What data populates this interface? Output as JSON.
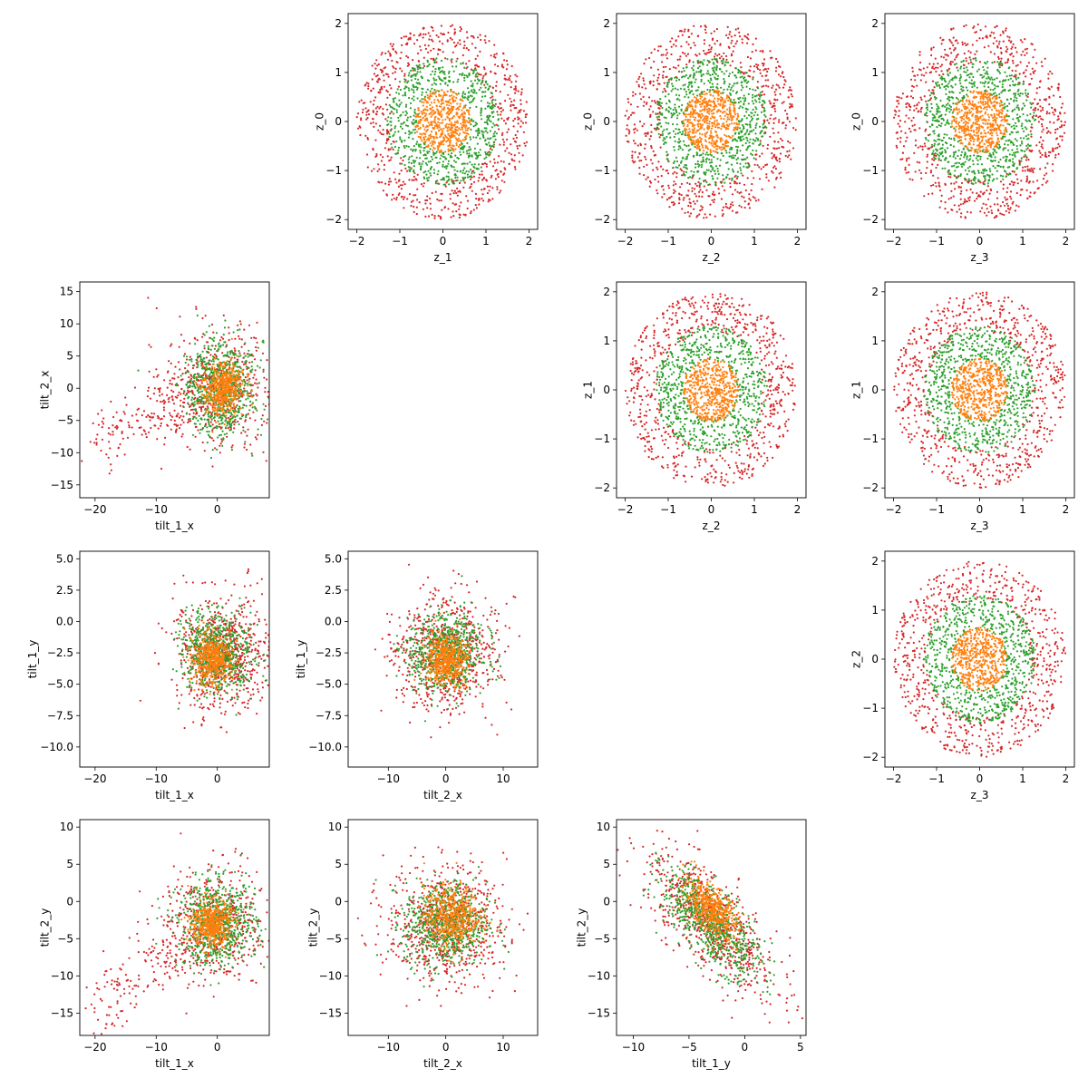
{
  "figure": {
    "kind": "scatter-matrix",
    "legend": "none",
    "grid": false,
    "title": ""
  },
  "series_colors": [
    "#d62728",
    "#2ca02c",
    "#ff7f0e"
  ],
  "chart_data": [
    {
      "type": "scatter",
      "row": 0,
      "col": 1,
      "title": "",
      "xlabel": "z_1",
      "ylabel": "z_0",
      "xlim": [
        -2.2,
        2.2
      ],
      "ylim": [
        -2.2,
        2.2
      ],
      "xticks": [
        -2,
        -1,
        0,
        1,
        2
      ],
      "yticks": [
        -2,
        -1,
        0,
        1,
        2
      ],
      "series": [
        {
          "color": "#d62728",
          "distribution": "annulus",
          "radius_range": [
            1.2,
            2.0
          ],
          "approx_points": 700
        },
        {
          "color": "#2ca02c",
          "distribution": "annulus",
          "radius_range": [
            0.6,
            1.3
          ],
          "approx_points": 700
        },
        {
          "color": "#ff7f0e",
          "distribution": "disc",
          "radius_range": [
            0,
            0.65
          ],
          "approx_points": 500
        }
      ]
    },
    {
      "type": "scatter",
      "row": 0,
      "col": 2,
      "title": "",
      "xlabel": "z_2",
      "ylabel": "z_0",
      "xlim": [
        -2.2,
        2.2
      ],
      "ylim": [
        -2.2,
        2.2
      ],
      "xticks": [
        -2,
        -1,
        0,
        1,
        2
      ],
      "yticks": [
        -2,
        -1,
        0,
        1,
        2
      ],
      "series": [
        {
          "color": "#d62728",
          "distribution": "annulus",
          "radius_range": [
            1.2,
            2.0
          ],
          "approx_points": 700
        },
        {
          "color": "#2ca02c",
          "distribution": "annulus",
          "radius_range": [
            0.6,
            1.3
          ],
          "approx_points": 700
        },
        {
          "color": "#ff7f0e",
          "distribution": "disc",
          "radius_range": [
            0,
            0.65
          ],
          "approx_points": 500
        }
      ]
    },
    {
      "type": "scatter",
      "row": 0,
      "col": 3,
      "title": "",
      "xlabel": "z_3",
      "ylabel": "z_0",
      "xlim": [
        -2.2,
        2.2
      ],
      "ylim": [
        -2.2,
        2.2
      ],
      "xticks": [
        -2,
        -1,
        0,
        1,
        2
      ],
      "yticks": [
        -2,
        -1,
        0,
        1,
        2
      ],
      "series": [
        {
          "color": "#d62728",
          "distribution": "annulus",
          "radius_range": [
            1.2,
            2.0
          ],
          "approx_points": 700
        },
        {
          "color": "#2ca02c",
          "distribution": "annulus",
          "radius_range": [
            0.6,
            1.3
          ],
          "approx_points": 700
        },
        {
          "color": "#ff7f0e",
          "distribution": "disc",
          "radius_range": [
            0,
            0.65
          ],
          "approx_points": 500
        }
      ]
    },
    {
      "type": "scatter",
      "row": 1,
      "col": 0,
      "title": "",
      "xlabel": "tilt_1_x",
      "ylabel": "tilt_2_x",
      "xlim": [
        -22.5,
        8.5
      ],
      "ylim": [
        -17,
        16.5
      ],
      "xticks": [
        -20,
        -10,
        0
      ],
      "yticks": [
        -15,
        -10,
        -5,
        0,
        5,
        10,
        15
      ],
      "series": [
        {
          "color": "#d62728",
          "distribution": "skewed-cloud",
          "center": [
            0,
            0
          ],
          "spread": [
            6,
            5.5
          ],
          "tail_toward": [
            -20,
            -8
          ],
          "approx_points": 700
        },
        {
          "color": "#2ca02c",
          "distribution": "skewed-cloud",
          "center": [
            0.5,
            0
          ],
          "spread": [
            3.5,
            4.5
          ],
          "approx_points": 700
        },
        {
          "color": "#ff7f0e",
          "distribution": "cloud",
          "center": [
            1,
            0
          ],
          "spread": [
            2,
            2.5
          ],
          "approx_points": 500
        }
      ]
    },
    {
      "type": "scatter",
      "row": 1,
      "col": 2,
      "title": "",
      "xlabel": "z_2",
      "ylabel": "z_1",
      "xlim": [
        -2.2,
        2.2
      ],
      "ylim": [
        -2.2,
        2.2
      ],
      "xticks": [
        -2,
        -1,
        0,
        1,
        2
      ],
      "yticks": [
        -2,
        -1,
        0,
        1,
        2
      ],
      "series": [
        {
          "color": "#d62728",
          "distribution": "annulus",
          "radius_range": [
            1.2,
            2.0
          ],
          "approx_points": 700
        },
        {
          "color": "#2ca02c",
          "distribution": "annulus",
          "radius_range": [
            0.6,
            1.3
          ],
          "approx_points": 700
        },
        {
          "color": "#ff7f0e",
          "distribution": "disc",
          "radius_range": [
            0,
            0.65
          ],
          "approx_points": 500
        }
      ]
    },
    {
      "type": "scatter",
      "row": 1,
      "col": 3,
      "title": "",
      "xlabel": "z_3",
      "ylabel": "z_1",
      "xlim": [
        -2.2,
        2.2
      ],
      "ylim": [
        -2.2,
        2.2
      ],
      "xticks": [
        -2,
        -1,
        0,
        1,
        2
      ],
      "yticks": [
        -2,
        -1,
        0,
        1,
        2
      ],
      "series": [
        {
          "color": "#d62728",
          "distribution": "annulus",
          "radius_range": [
            1.2,
            2.0
          ],
          "approx_points": 700
        },
        {
          "color": "#2ca02c",
          "distribution": "annulus",
          "radius_range": [
            0.6,
            1.3
          ],
          "approx_points": 700
        },
        {
          "color": "#ff7f0e",
          "distribution": "disc",
          "radius_range": [
            0,
            0.65
          ],
          "approx_points": 500
        }
      ]
    },
    {
      "type": "scatter",
      "row": 2,
      "col": 0,
      "title": "",
      "xlabel": "tilt_1_x",
      "ylabel": "tilt_1_y",
      "xlim": [
        -22.5,
        8.5
      ],
      "ylim": [
        -11.6,
        5.6
      ],
      "xticks": [
        -20,
        -10,
        0
      ],
      "yticks": [
        -10.0,
        -7.5,
        -5.0,
        -2.5,
        0.0,
        2.5,
        5.0
      ],
      "ytick_labels": [
        "−10.0",
        "−7.5",
        "−5.0",
        "−2.5",
        "0.0",
        "2.5",
        "5.0"
      ],
      "series": [
        {
          "color": "#d62728",
          "distribution": "cloud",
          "center": [
            1,
            -2.5
          ],
          "spread": [
            5,
            2.8
          ],
          "approx_points": 700
        },
        {
          "color": "#2ca02c",
          "distribution": "cloud",
          "center": [
            0,
            -2.5
          ],
          "spread": [
            3.5,
            2.0
          ],
          "approx_points": 700
        },
        {
          "color": "#ff7f0e",
          "distribution": "cloud",
          "center": [
            -1,
            -3
          ],
          "spread": [
            2,
            1.2
          ],
          "approx_points": 500
        }
      ]
    },
    {
      "type": "scatter",
      "row": 2,
      "col": 1,
      "title": "",
      "xlabel": "tilt_2_x",
      "ylabel": "tilt_1_y",
      "xlim": [
        -17,
        16
      ],
      "ylim": [
        -11.6,
        5.6
      ],
      "xticks": [
        -10,
        0,
        10
      ],
      "yticks": [
        -10.0,
        -7.5,
        -5.0,
        -2.5,
        0.0,
        2.5,
        5.0
      ],
      "ytick_labels": [
        "−10.0",
        "−7.5",
        "−5.0",
        "−2.5",
        "0.0",
        "2.5",
        "5.0"
      ],
      "series": [
        {
          "color": "#d62728",
          "distribution": "cloud",
          "center": [
            0,
            -2.5
          ],
          "spread": [
            6,
            2.8
          ],
          "approx_points": 700
        },
        {
          "color": "#2ca02c",
          "distribution": "cloud",
          "center": [
            0,
            -2.5
          ],
          "spread": [
            4,
            2.0
          ],
          "approx_points": 700
        },
        {
          "color": "#ff7f0e",
          "distribution": "cloud",
          "center": [
            0,
            -3
          ],
          "spread": [
            2.2,
            1.2
          ],
          "approx_points": 500
        }
      ]
    },
    {
      "type": "scatter",
      "row": 2,
      "col": 3,
      "title": "",
      "xlabel": "z_3",
      "ylabel": "z_2",
      "xlim": [
        -2.2,
        2.2
      ],
      "ylim": [
        -2.2,
        2.2
      ],
      "xticks": [
        -2,
        -1,
        0,
        1,
        2
      ],
      "yticks": [
        -2,
        -1,
        0,
        1,
        2
      ],
      "series": [
        {
          "color": "#d62728",
          "distribution": "annulus",
          "radius_range": [
            1.2,
            2.0
          ],
          "approx_points": 700
        },
        {
          "color": "#2ca02c",
          "distribution": "annulus",
          "radius_range": [
            0.6,
            1.3
          ],
          "approx_points": 700
        },
        {
          "color": "#ff7f0e",
          "distribution": "disc",
          "radius_range": [
            0,
            0.65
          ],
          "approx_points": 500
        }
      ]
    },
    {
      "type": "scatter",
      "row": 3,
      "col": 0,
      "title": "",
      "xlabel": "tilt_1_x",
      "ylabel": "tilt_2_y",
      "xlim": [
        -22.5,
        8.5
      ],
      "ylim": [
        -18,
        11
      ],
      "xticks": [
        -20,
        -10,
        0
      ],
      "yticks": [
        -15,
        -10,
        -5,
        0,
        5,
        10
      ],
      "series": [
        {
          "color": "#d62728",
          "distribution": "skewed-cloud",
          "center": [
            0,
            -3
          ],
          "spread": [
            6,
            5
          ],
          "tail_toward": [
            -20,
            -14
          ],
          "approx_points": 700
        },
        {
          "color": "#2ca02c",
          "distribution": "cloud",
          "center": [
            0,
            -3
          ],
          "spread": [
            4,
            3.5
          ],
          "approx_points": 700
        },
        {
          "color": "#ff7f0e",
          "distribution": "cloud",
          "center": [
            -1,
            -3
          ],
          "spread": [
            2,
            2
          ],
          "approx_points": 500
        }
      ]
    },
    {
      "type": "scatter",
      "row": 3,
      "col": 1,
      "title": "",
      "xlabel": "tilt_2_x",
      "ylabel": "tilt_2_y",
      "xlim": [
        -17,
        16
      ],
      "ylim": [
        -18,
        11
      ],
      "xticks": [
        -10,
        0,
        10
      ],
      "yticks": [
        -15,
        -10,
        -5,
        0,
        5,
        10
      ],
      "series": [
        {
          "color": "#d62728",
          "distribution": "cloud",
          "center": [
            0,
            -3
          ],
          "spread": [
            6.5,
            5
          ],
          "approx_points": 700
        },
        {
          "color": "#2ca02c",
          "distribution": "cloud",
          "center": [
            0,
            -3
          ],
          "spread": [
            4.5,
            3.5
          ],
          "approx_points": 700
        },
        {
          "color": "#ff7f0e",
          "distribution": "cloud",
          "center": [
            1,
            -2
          ],
          "spread": [
            3,
            2.5
          ],
          "approx_points": 500
        }
      ]
    },
    {
      "type": "scatter",
      "row": 3,
      "col": 2,
      "title": "",
      "xlabel": "tilt_1_y",
      "ylabel": "tilt_2_y",
      "xlim": [
        -11.5,
        5.5
      ],
      "ylim": [
        -18,
        11
      ],
      "xticks": [
        -10,
        -5,
        0,
        5
      ],
      "yticks": [
        -15,
        -10,
        -5,
        0,
        5,
        10
      ],
      "series": [
        {
          "color": "#d62728",
          "distribution": "correlated-cloud",
          "center": [
            -3,
            -3
          ],
          "spread": [
            3,
            5
          ],
          "correlation": -0.75,
          "approx_points": 700
        },
        {
          "color": "#2ca02c",
          "distribution": "correlated-cloud",
          "center": [
            -3,
            -3
          ],
          "spread": [
            2.2,
            3.5
          ],
          "correlation": -0.7,
          "approx_points": 700
        },
        {
          "color": "#ff7f0e",
          "distribution": "correlated-cloud",
          "center": [
            -3,
            -1
          ],
          "spread": [
            1.2,
            2
          ],
          "correlation": -0.6,
          "approx_points": 500
        }
      ]
    }
  ]
}
